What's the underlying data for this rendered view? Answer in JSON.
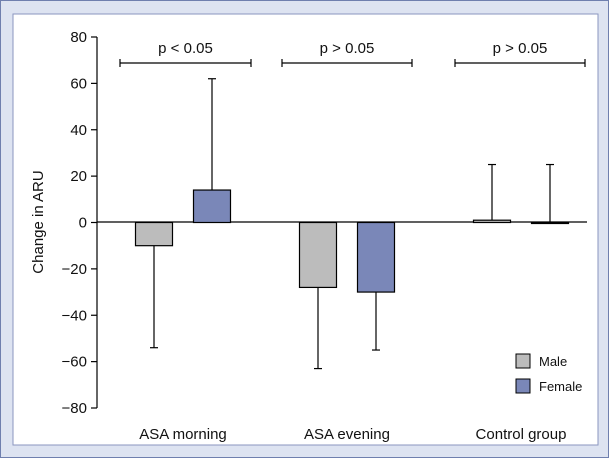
{
  "chart_data": {
    "type": "bar",
    "title": "",
    "xlabel": "",
    "ylabel": "Change in ARU",
    "ylim": [
      -80,
      80
    ],
    "yticks": [
      80,
      60,
      40,
      20,
      0,
      -20,
      -40,
      -60,
      -80
    ],
    "ytick_labels": [
      "80",
      "60",
      "40",
      "20",
      "0",
      "−20",
      "−40",
      "−60",
      "−80"
    ],
    "categories": [
      "ASA morning",
      "ASA evening",
      "Control group"
    ],
    "series": [
      {
        "name": "Male",
        "color": "#bcbcbc",
        "values": [
          -10,
          -28,
          1
        ],
        "error_bars": [
          -54,
          -63,
          25
        ]
      },
      {
        "name": "Female",
        "color": "#7a87b8",
        "values": [
          14,
          -30,
          0
        ],
        "error_bars": [
          62,
          -55,
          25
        ]
      }
    ],
    "significance": [
      "p < 0.05",
      "p > 0.05",
      "p > 0.05"
    ],
    "legend": {
      "position": "bottom-right"
    },
    "grid": false,
    "background_color": "#dde3f1",
    "plot_background_color": "#ffffff"
  }
}
